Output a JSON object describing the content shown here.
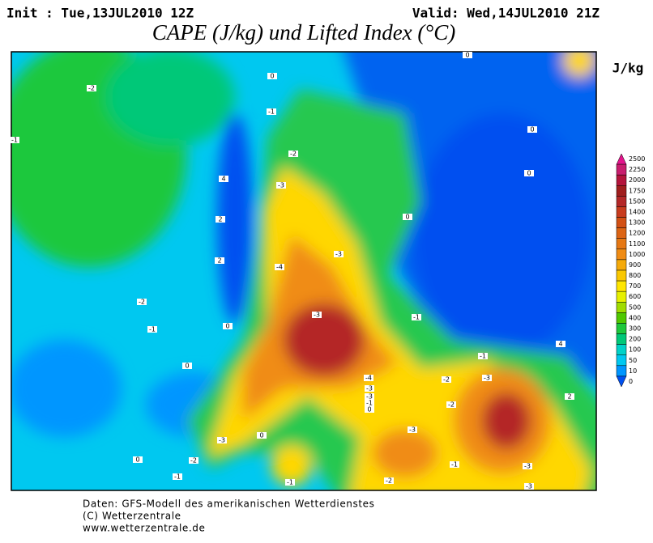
{
  "header": {
    "init": "Init : Tue,13JUL2010 12Z",
    "valid": "Valid: Wed,14JUL2010 21Z",
    "title": "CAPE (J/kg) und Lifted Index (°C)"
  },
  "colorbar": {
    "unit": "J/kg",
    "labels": [
      "2500",
      "2250",
      "2000",
      "1750",
      "1500",
      "1400",
      "1300",
      "1200",
      "1100",
      "1000",
      "900",
      "800",
      "700",
      "600",
      "500",
      "400",
      "300",
      "200",
      "100",
      "50",
      "10",
      "0"
    ],
    "colors": [
      "#e3148c",
      "#c81e6e",
      "#b4143c",
      "#a01e1e",
      "#b42828",
      "#c83c1e",
      "#d25014",
      "#dc6414",
      "#e67814",
      "#f08c14",
      "#f5aa0a",
      "#fac800",
      "#ffe600",
      "#e6f000",
      "#a0dc00",
      "#50c800",
      "#1ec83c",
      "#00c878",
      "#00d2c8",
      "#00c8f0",
      "#0096ff",
      "#0050f0"
    ]
  },
  "contours": {
    "labels": [
      "-2",
      "-1",
      "0",
      "-1",
      "-2",
      "-3",
      "4",
      "2",
      "2",
      "-4",
      "-3",
      "-2",
      "-1",
      "0",
      "-3",
      "0",
      "-4",
      "-1",
      "-1",
      "-2",
      "-3",
      "-2",
      "-3",
      "-3",
      "-1",
      "0",
      "-3",
      "0",
      "-3",
      "-2",
      "-1",
      "-1",
      "-2",
      "-1",
      "-3",
      "-3",
      "0",
      "0",
      "0",
      "4",
      "2",
      "0",
      "0"
    ]
  },
  "footer": {
    "line1": "Daten: GFS-Modell des amerikanischen Wetterdienstes",
    "line2": "(C) Wetterzentrale",
    "line3": "www.wetterzentrale.de"
  }
}
